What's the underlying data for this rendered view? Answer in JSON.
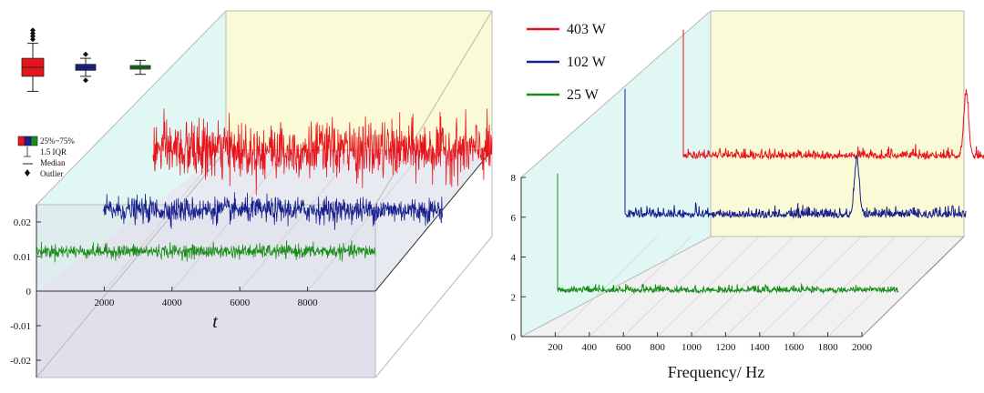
{
  "chart_data": [
    {
      "type": "line",
      "panel": "time-series-3d",
      "xlabel": "t",
      "ylabel": "",
      "xlim": [
        0,
        10000
      ],
      "ylim": [
        -0.025,
        0.025
      ],
      "x_ticks": [
        "2000",
        "4000",
        "6000",
        "8000"
      ],
      "y_ticks": [
        "0.02",
        "0.01",
        "0",
        "-0.01",
        "-0.02"
      ],
      "series": [
        {
          "label": "403 W",
          "color": "#e8141c",
          "t_range": [
            0,
            10000
          ],
          "mean": 0.0,
          "amplitude": 0.009
        },
        {
          "label": "102 W",
          "color": "#17208c",
          "t_range": [
            0,
            10000
          ],
          "mean": 0.0,
          "amplitude": 0.004
        },
        {
          "label": "25 W",
          "color": "#1a8c1a",
          "t_range": [
            0,
            10000
          ],
          "mean": 0.0,
          "amplitude": 0.0022
        }
      ],
      "boxplot_legend": [
        "25%~75%",
        "1.5 IQR",
        "Median",
        "Outlier"
      ],
      "boxplots": [
        {
          "color": "#e8141c",
          "q1": -0.0045,
          "median": 0.0,
          "q3": 0.0045,
          "whisker_low": -0.012,
          "whisker_high": 0.012,
          "outliers": [
            0.014,
            0.0155,
            0.017,
            0.0185
          ]
        },
        {
          "color": "#17208c",
          "q1": -0.0015,
          "median": 0.0,
          "q3": 0.0015,
          "whisker_low": -0.0045,
          "whisker_high": 0.0045,
          "outliers": [
            0.0065,
            -0.0065
          ]
        },
        {
          "color": "#1a8c1a",
          "q1": -0.0009,
          "median": 0.0,
          "q3": 0.0009,
          "whisker_low": -0.0035,
          "whisker_high": 0.0035,
          "outliers": []
        }
      ]
    },
    {
      "type": "line",
      "panel": "spectrum-3d",
      "xlabel": "Frequency/ Hz",
      "ylabel": "",
      "xlim": [
        0,
        2000
      ],
      "ylim": [
        0,
        8
      ],
      "x_ticks": [
        "200",
        "400",
        "600",
        "800",
        "1000",
        "1200",
        "1400",
        "1600",
        "1800",
        "2000"
      ],
      "y_ticks": [
        "0",
        "2",
        "4",
        "6",
        "8"
      ],
      "series": [
        {
          "name": "403 W",
          "color": "#e8141c",
          "dc_spike": 6.5,
          "peak_freq": 1660,
          "peak_amp": 3.2,
          "noise": 0.4
        },
        {
          "name": "102 W",
          "color": "#17208c",
          "dc_spike": 6.5,
          "peak_freq": 1360,
          "peak_amp": 2.8,
          "noise": 0.45
        },
        {
          "name": "25 W",
          "color": "#1a8c1a",
          "dc_spike": 6.0,
          "peak_freq": null,
          "peak_amp": 0,
          "noise": 0.3
        }
      ]
    }
  ]
}
